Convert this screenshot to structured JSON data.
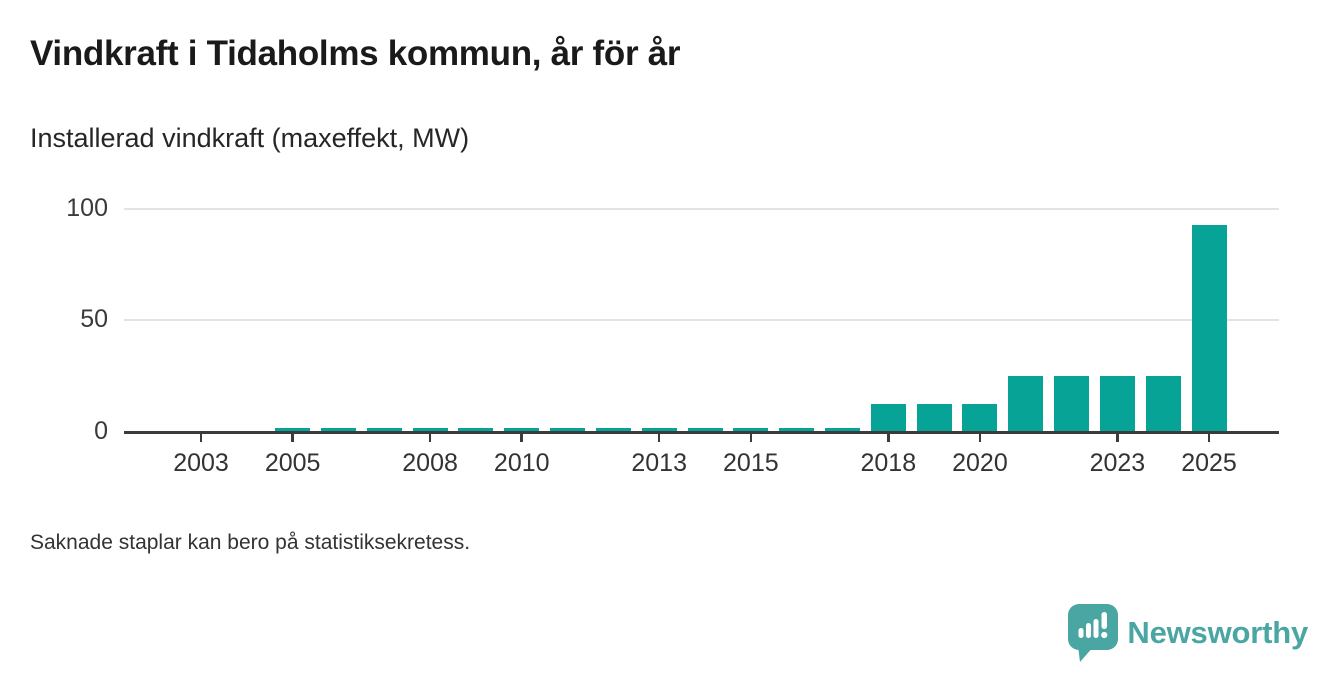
{
  "title": "Vindkraft i Tidaholms kommun, år för år",
  "subtitle": "Installerad vindkraft (maxeffekt, MW)",
  "footnote": "Saknade staplar kan bero på statistiksekretess.",
  "brand": {
    "name": "Newsworthy",
    "logo_icon": "speech-bubble-bar-chart-icon",
    "color": "#4aa6a2"
  },
  "colors": {
    "bar": "#08a397",
    "axis": "#3b3b3b",
    "gridline": "#e3e3e3",
    "tick_text": "#333333",
    "title_text": "#1a1a1a"
  },
  "chart_data": {
    "type": "bar",
    "title": "Vindkraft i Tidaholms kommun, år för år",
    "subtitle": "Installerad vindkraft (maxeffekt, MW)",
    "unit": "MW",
    "x": [
      2003,
      2004,
      2005,
      2006,
      2007,
      2008,
      2009,
      2010,
      2011,
      2012,
      2013,
      2014,
      2015,
      2016,
      2017,
      2018,
      2019,
      2020,
      2021,
      2022,
      2023,
      2024,
      2025
    ],
    "values": [
      null,
      null,
      2,
      2,
      2,
      2,
      2,
      2,
      2,
      2,
      2,
      2,
      2,
      2,
      2,
      12.5,
      12.5,
      12.5,
      25,
      25,
      25,
      25,
      92.5
    ],
    "xlabel": "",
    "ylabel": "Installerad vindkraft (maxeffekt, MW)",
    "ylim": [
      0,
      100
    ],
    "yticks": [
      0,
      50,
      100
    ],
    "xtick_labels": [
      "2003",
      "2005",
      "2008",
      "2010",
      "2013",
      "2015",
      "2018",
      "2020",
      "2023",
      "2025"
    ],
    "grid": "horizontal",
    "legend": "none",
    "missing_bars_note": "Saknade staplar kan bero på statistiksekretess."
  }
}
